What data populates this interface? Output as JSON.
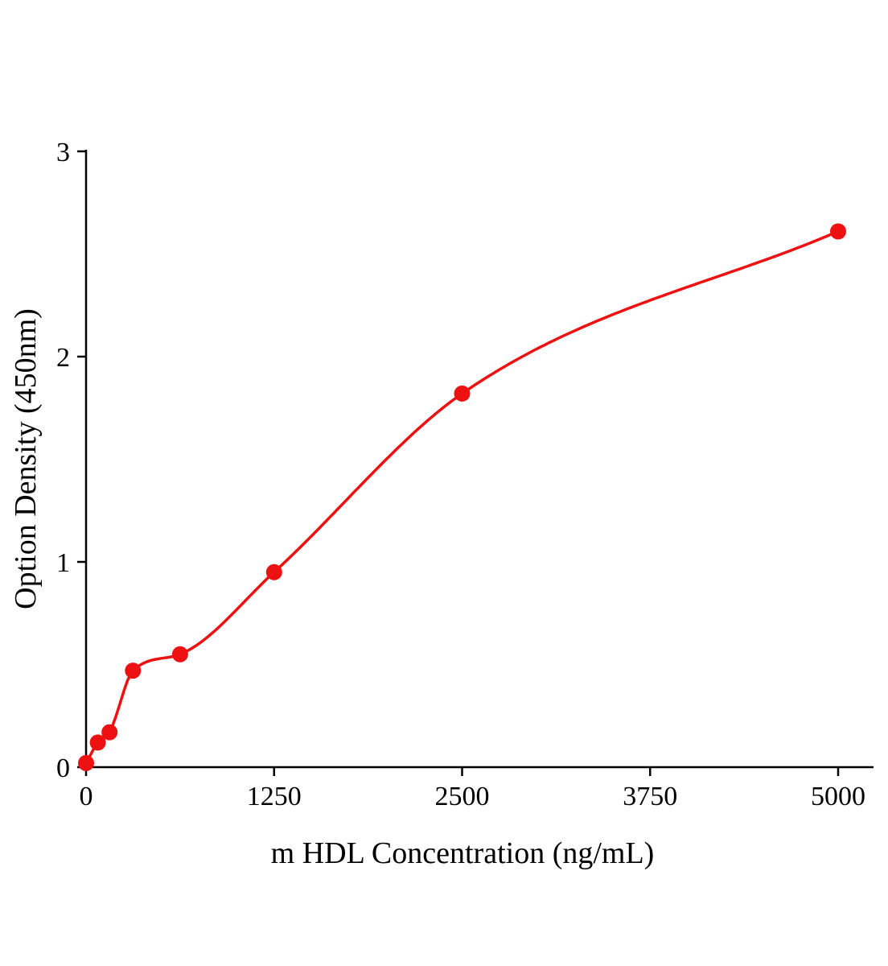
{
  "chart_data": {
    "type": "scatter",
    "title": "",
    "xlabel": "m HDL Concentration (ng/mL)",
    "ylabel": "Option Density (450nm)",
    "x": [
      0,
      78,
      156,
      312,
      625,
      1250,
      2500,
      5000
    ],
    "y": [
      0.02,
      0.12,
      0.17,
      0.47,
      0.55,
      0.95,
      1.82,
      2.61
    ],
    "x_ticks": [
      0,
      1250,
      2500,
      3750,
      5000
    ],
    "y_ticks": [
      0,
      1,
      2,
      3
    ],
    "xlim": [
      0,
      5000
    ],
    "ylim": [
      0,
      3
    ],
    "legend": "none",
    "grid": "off",
    "marker": "filled-circle",
    "curve_style": "smooth fit line through points",
    "colors": {
      "series": "#ee1111",
      "axis": "#000000",
      "background": "#ffffff"
    }
  }
}
